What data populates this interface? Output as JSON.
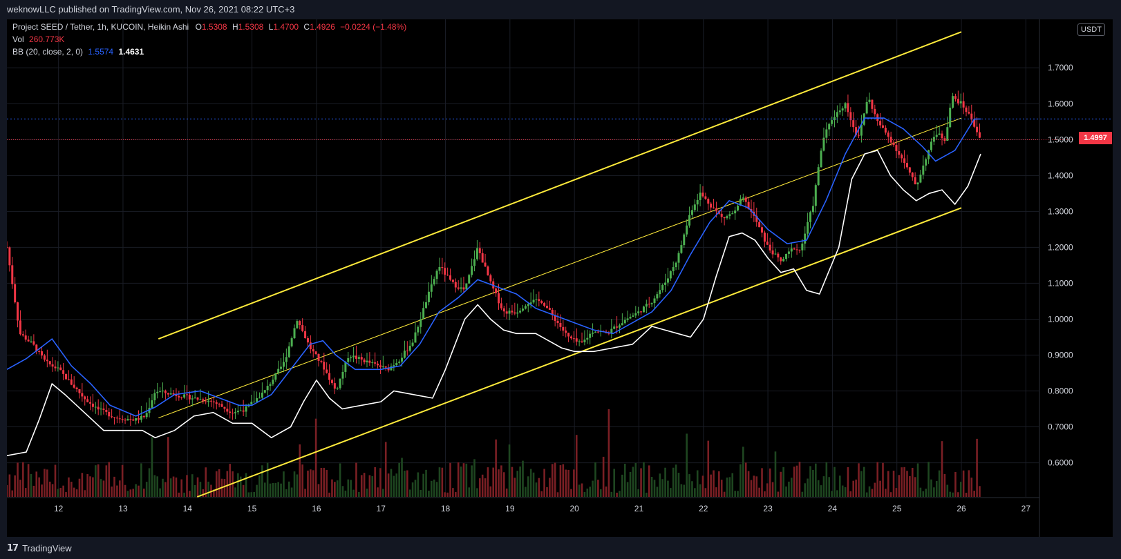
{
  "header": {
    "publish_line": "weknowLLC published on TradingView.com, Nov 26, 2021 08:22 UTC+3"
  },
  "legend": {
    "symbol_line": "Project SEED / Tether, 1h, KUCOIN, Heikin Ashi",
    "o_label": "O",
    "o_value": "1.5308",
    "h_label": "H",
    "h_value": "1.5308",
    "l_label": "L",
    "l_value": "1.4700",
    "c_label": "C",
    "c_value": "1.4926",
    "change": "−0.0224 (−1.48%)",
    "vol_label": "Vol",
    "vol_value": "260.773K",
    "bb_label": "BB (20, close, 2, 0)",
    "bb_basis": "1.5574",
    "bb_lower": "1.4631"
  },
  "price_scale": {
    "currency": "USDT",
    "last_price_label": "1.4997"
  },
  "footer": {
    "brand": "TradingView"
  },
  "colors": {
    "up": "#26a69a",
    "up_bright": "#4caf50",
    "down": "#f23645",
    "bb_basis": "#2962ff",
    "bb_band": "#ffffff",
    "channel": "#ffeb3b"
  },
  "chart_data": {
    "type": "candlestick",
    "title": "Project SEED / Tether, 1h, KUCOIN, Heikin Ashi",
    "x_tick_labels": [
      "12",
      "13",
      "14",
      "15",
      "16",
      "17",
      "18",
      "19",
      "20",
      "21",
      "22",
      "23",
      "24",
      "25",
      "26",
      "27"
    ],
    "y_tick_labels": [
      "1.7000",
      "1.6000",
      "1.5000",
      "1.4000",
      "1.3000",
      "1.2000",
      "1.1000",
      "1.0000",
      "0.9000",
      "0.8000",
      "0.7000",
      "0.6000"
    ],
    "ylim": [
      0.505,
      1.835
    ],
    "xlim": [
      11.2,
      27.2
    ],
    "last_price": 1.4997,
    "bb_basis_level": 1.5574,
    "closes_anchor": [
      [
        11.2,
        1.2
      ],
      [
        11.4,
        0.96
      ],
      [
        11.6,
        0.93
      ],
      [
        11.8,
        0.88
      ],
      [
        12.0,
        0.86
      ],
      [
        12.2,
        0.82
      ],
      [
        12.4,
        0.78
      ],
      [
        12.6,
        0.75
      ],
      [
        12.9,
        0.725
      ],
      [
        13.2,
        0.72
      ],
      [
        13.35,
        0.73
      ],
      [
        13.5,
        0.8
      ],
      [
        13.8,
        0.79
      ],
      [
        14.1,
        0.78
      ],
      [
        14.4,
        0.77
      ],
      [
        14.7,
        0.74
      ],
      [
        14.9,
        0.75
      ],
      [
        15.2,
        0.8
      ],
      [
        15.5,
        0.88
      ],
      [
        15.7,
        1.0
      ],
      [
        15.9,
        0.92
      ],
      [
        16.1,
        0.87
      ],
      [
        16.3,
        0.8
      ],
      [
        16.5,
        0.9
      ],
      [
        16.8,
        0.88
      ],
      [
        17.1,
        0.86
      ],
      [
        17.3,
        0.89
      ],
      [
        17.5,
        0.94
      ],
      [
        17.7,
        1.05
      ],
      [
        17.9,
        1.15
      ],
      [
        18.1,
        1.1
      ],
      [
        18.3,
        1.08
      ],
      [
        18.5,
        1.2
      ],
      [
        18.7,
        1.1
      ],
      [
        18.9,
        1.02
      ],
      [
        19.1,
        1.02
      ],
      [
        19.3,
        1.05
      ],
      [
        19.5,
        1.05
      ],
      [
        19.7,
        1.0
      ],
      [
        19.9,
        0.95
      ],
      [
        20.1,
        0.93
      ],
      [
        20.3,
        0.97
      ],
      [
        20.5,
        0.96
      ],
      [
        20.8,
        1.0
      ],
      [
        21.0,
        1.02
      ],
      [
        21.2,
        1.05
      ],
      [
        21.4,
        1.1
      ],
      [
        21.6,
        1.17
      ],
      [
        21.8,
        1.3
      ],
      [
        21.95,
        1.35
      ],
      [
        22.1,
        1.32
      ],
      [
        22.3,
        1.28
      ],
      [
        22.5,
        1.3
      ],
      [
        22.6,
        1.34
      ],
      [
        22.8,
        1.28
      ],
      [
        23.0,
        1.2
      ],
      [
        23.2,
        1.16
      ],
      [
        23.4,
        1.2
      ],
      [
        23.5,
        1.19
      ],
      [
        23.7,
        1.32
      ],
      [
        23.85,
        1.5
      ],
      [
        24.0,
        1.56
      ],
      [
        24.2,
        1.6
      ],
      [
        24.4,
        1.5
      ],
      [
        24.55,
        1.62
      ],
      [
        24.7,
        1.55
      ],
      [
        24.9,
        1.5
      ],
      [
        25.1,
        1.44
      ],
      [
        25.3,
        1.37
      ],
      [
        25.45,
        1.45
      ],
      [
        25.6,
        1.52
      ],
      [
        25.75,
        1.5
      ],
      [
        25.85,
        1.62
      ],
      [
        26.0,
        1.6
      ],
      [
        26.15,
        1.56
      ],
      [
        26.3,
        1.5
      ]
    ],
    "bb_basis_anchor": [
      [
        11.2,
        0.86
      ],
      [
        11.5,
        0.89
      ],
      [
        11.9,
        0.945
      ],
      [
        12.2,
        0.87
      ],
      [
        12.5,
        0.82
      ],
      [
        12.8,
        0.76
      ],
      [
        13.2,
        0.73
      ],
      [
        13.5,
        0.755
      ],
      [
        13.8,
        0.79
      ],
      [
        14.2,
        0.8
      ],
      [
        14.5,
        0.78
      ],
      [
        14.8,
        0.76
      ],
      [
        15.0,
        0.76
      ],
      [
        15.3,
        0.79
      ],
      [
        15.6,
        0.86
      ],
      [
        15.9,
        0.93
      ],
      [
        16.1,
        0.94
      ],
      [
        16.3,
        0.9
      ],
      [
        16.6,
        0.86
      ],
      [
        17.0,
        0.86
      ],
      [
        17.3,
        0.87
      ],
      [
        17.6,
        0.93
      ],
      [
        17.9,
        1.02
      ],
      [
        18.2,
        1.06
      ],
      [
        18.5,
        1.11
      ],
      [
        18.8,
        1.09
      ],
      [
        19.1,
        1.07
      ],
      [
        19.4,
        1.03
      ],
      [
        19.7,
        1.01
      ],
      [
        20.0,
        0.99
      ],
      [
        20.3,
        0.97
      ],
      [
        20.6,
        0.96
      ],
      [
        20.9,
        0.99
      ],
      [
        21.2,
        1.02
      ],
      [
        21.5,
        1.08
      ],
      [
        21.8,
        1.18
      ],
      [
        22.1,
        1.27
      ],
      [
        22.4,
        1.33
      ],
      [
        22.7,
        1.31
      ],
      [
        23.0,
        1.25
      ],
      [
        23.3,
        1.21
      ],
      [
        23.6,
        1.22
      ],
      [
        23.9,
        1.33
      ],
      [
        24.2,
        1.46
      ],
      [
        24.5,
        1.56
      ],
      [
        24.8,
        1.56
      ],
      [
        25.1,
        1.53
      ],
      [
        25.4,
        1.48
      ],
      [
        25.6,
        1.44
      ],
      [
        25.9,
        1.47
      ],
      [
        26.2,
        1.557
      ],
      [
        26.3,
        1.5574
      ]
    ],
    "bb_lower_anchor": [
      [
        11.2,
        0.62
      ],
      [
        11.5,
        0.63
      ],
      [
        11.7,
        0.72
      ],
      [
        11.9,
        0.82
      ],
      [
        12.1,
        0.79
      ],
      [
        12.4,
        0.74
      ],
      [
        12.7,
        0.69
      ],
      [
        13.0,
        0.69
      ],
      [
        13.3,
        0.69
      ],
      [
        13.5,
        0.67
      ],
      [
        13.8,
        0.69
      ],
      [
        14.1,
        0.73
      ],
      [
        14.4,
        0.74
      ],
      [
        14.7,
        0.71
      ],
      [
        15.0,
        0.71
      ],
      [
        15.3,
        0.67
      ],
      [
        15.6,
        0.7
      ],
      [
        15.8,
        0.77
      ],
      [
        16.0,
        0.83
      ],
      [
        16.2,
        0.78
      ],
      [
        16.4,
        0.75
      ],
      [
        16.7,
        0.76
      ],
      [
        17.0,
        0.77
      ],
      [
        17.2,
        0.8
      ],
      [
        17.5,
        0.79
      ],
      [
        17.8,
        0.78
      ],
      [
        18.0,
        0.86
      ],
      [
        18.3,
        1.0
      ],
      [
        18.5,
        1.04
      ],
      [
        18.7,
        1.0
      ],
      [
        18.9,
        0.97
      ],
      [
        19.1,
        0.96
      ],
      [
        19.4,
        0.96
      ],
      [
        19.6,
        0.94
      ],
      [
        19.8,
        0.92
      ],
      [
        20.0,
        0.91
      ],
      [
        20.3,
        0.91
      ],
      [
        20.6,
        0.92
      ],
      [
        20.9,
        0.93
      ],
      [
        21.2,
        0.98
      ],
      [
        21.4,
        0.97
      ],
      [
        21.6,
        0.96
      ],
      [
        21.8,
        0.95
      ],
      [
        22.0,
        1.0
      ],
      [
        22.2,
        1.12
      ],
      [
        22.4,
        1.23
      ],
      [
        22.6,
        1.24
      ],
      [
        22.8,
        1.22
      ],
      [
        23.0,
        1.17
      ],
      [
        23.2,
        1.13
      ],
      [
        23.4,
        1.14
      ],
      [
        23.6,
        1.08
      ],
      [
        23.8,
        1.07
      ],
      [
        24.1,
        1.2
      ],
      [
        24.3,
        1.39
      ],
      [
        24.5,
        1.46
      ],
      [
        24.7,
        1.47
      ],
      [
        24.9,
        1.4
      ],
      [
        25.1,
        1.36
      ],
      [
        25.3,
        1.33
      ],
      [
        25.5,
        1.35
      ],
      [
        25.7,
        1.36
      ],
      [
        25.9,
        1.32
      ],
      [
        26.1,
        1.37
      ],
      [
        26.3,
        1.46
      ]
    ],
    "channel_lines": [
      {
        "name": "upper",
        "points": [
          [
            13.55,
            0.945
          ],
          [
            26.0,
            1.8
          ]
        ],
        "width": 2
      },
      {
        "name": "middle",
        "points": [
          [
            13.55,
            0.725
          ],
          [
            26.0,
            1.56
          ]
        ],
        "width": 1
      },
      {
        "name": "lower",
        "points": [
          [
            14.15,
            0.505
          ],
          [
            26.0,
            1.31
          ]
        ],
        "width": 2
      }
    ]
  }
}
